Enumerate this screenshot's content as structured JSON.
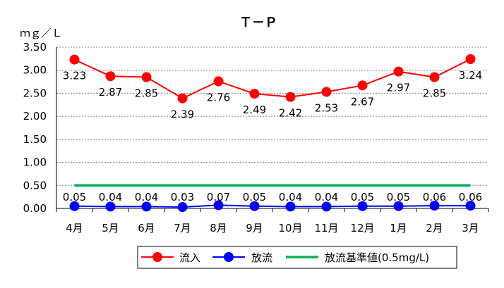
{
  "chart_data": {
    "type": "line",
    "title": "Ｔ－Ｐ",
    "ylabel": "ｍｇ／Ｌ",
    "xlabel": "",
    "categories": [
      "4月",
      "5月",
      "6月",
      "7月",
      "8月",
      "9月",
      "10月",
      "11月",
      "12月",
      "1月",
      "2月",
      "3月"
    ],
    "ylim": [
      0,
      3.5
    ],
    "yticks": [
      "0.00",
      "0.50",
      "1.00",
      "1.50",
      "2.00",
      "2.50",
      "3.00",
      "3.50"
    ],
    "grid": true,
    "legend_position": "bottom",
    "series": [
      {
        "name": "流入",
        "color": "#ff0000",
        "values": [
          3.23,
          2.87,
          2.85,
          2.39,
          2.76,
          2.49,
          2.42,
          2.53,
          2.67,
          2.97,
          2.85,
          3.24
        ],
        "labels": [
          "3.23",
          "2.87",
          "2.85",
          "2.39",
          "2.76",
          "2.49",
          "2.42",
          "2.53",
          "2.67",
          "2.97",
          "2.85",
          "3.24"
        ]
      },
      {
        "name": "放流",
        "color": "#0000ff",
        "values": [
          0.05,
          0.04,
          0.04,
          0.03,
          0.07,
          0.05,
          0.04,
          0.04,
          0.05,
          0.05,
          0.06,
          0.06
        ],
        "labels": [
          "0.05",
          "0.04",
          "0.04",
          "0.03",
          "0.07",
          "0.05",
          "0.04",
          "0.04",
          "0.05",
          "0.05",
          "0.06",
          "0.06"
        ]
      },
      {
        "name": "放流基準値(0.5mg/L)",
        "color": "#00b050",
        "values": [
          0.5,
          0.5,
          0.5,
          0.5,
          0.5,
          0.5,
          0.5,
          0.5,
          0.5,
          0.5,
          0.5,
          0.5
        ]
      }
    ]
  }
}
